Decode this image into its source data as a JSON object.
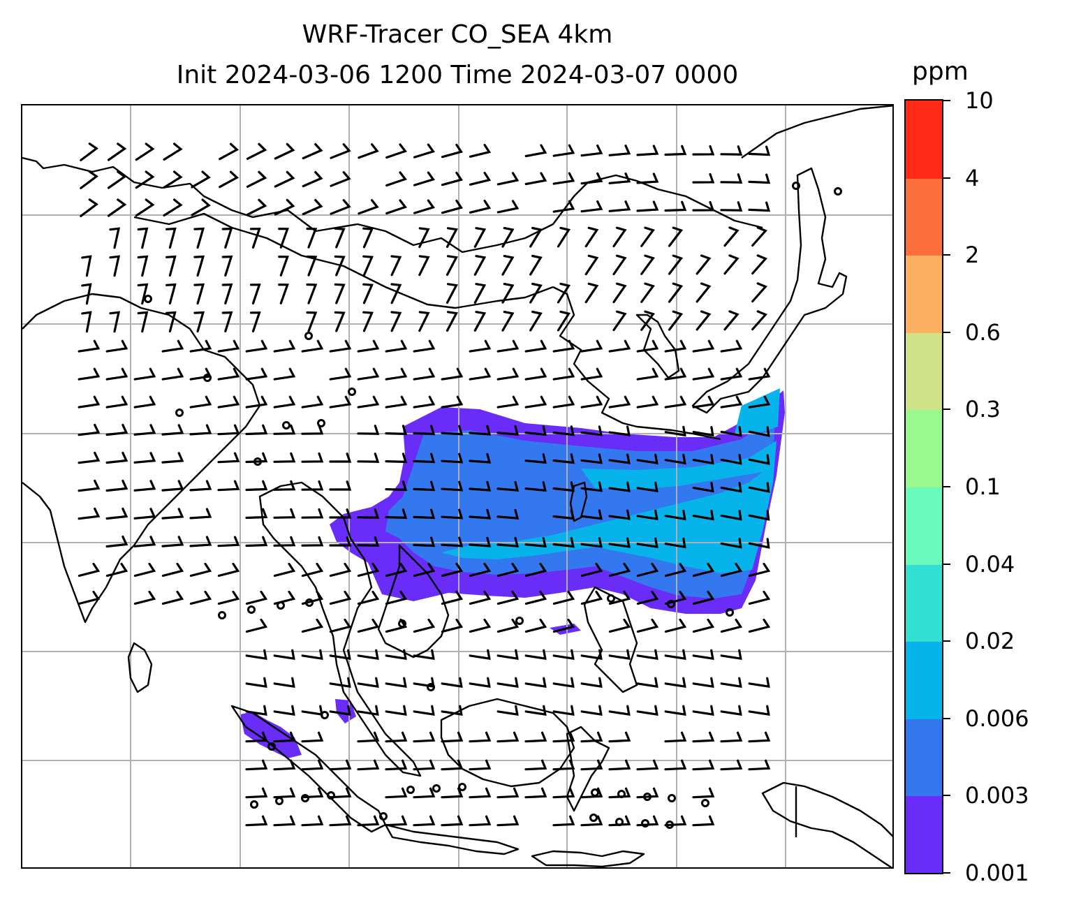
{
  "title_line1": "WRF-Tracer CO_SEA 4km",
  "title_line2": "Init 2024-03-06 1200 Time 2024-03-07 0000",
  "colorbar": {
    "unit": "ppm",
    "levels": [
      "0.001",
      "0.003",
      "0.006",
      "0.02",
      "0.04",
      "0.1",
      "0.3",
      "0.6",
      "2",
      "4",
      "10"
    ],
    "colors": [
      "#6a2cf7",
      "#3478f0",
      "#06b3eb",
      "#32dfd3",
      "#68fbbd",
      "#99f98f",
      "#cfe288",
      "#fdaf62",
      "#fd6f3d",
      "#ff2a18"
    ]
  },
  "map": {
    "tracer_colors": {
      "low": "#6a2cf7",
      "mid": "#3478f0",
      "high": "#06b3eb"
    },
    "gridline_color": "#b0b0b0",
    "coastline_color": "#000000",
    "wind_barb_color": "#000000"
  }
}
